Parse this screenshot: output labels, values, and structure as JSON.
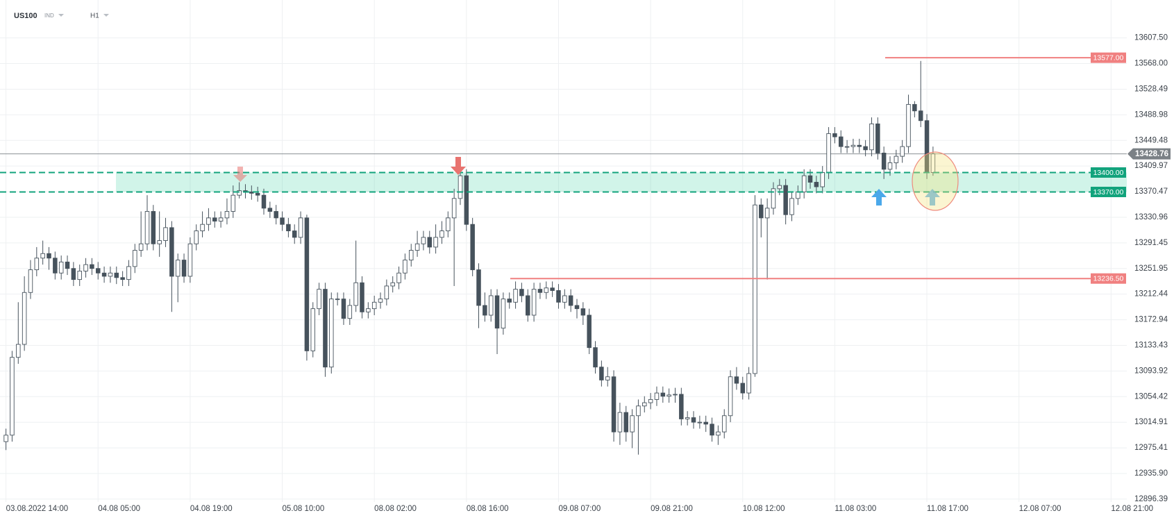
{
  "chart_data": {
    "type": "candlestick",
    "symbol": "US100",
    "market": "IND",
    "timeframe": "H1",
    "up_color": "#ffffff",
    "down_color": "#46525c",
    "wick_color": "#46525c",
    "grid": true,
    "ylim": [
      12892,
      13666
    ],
    "yticks": [
      {
        "value": 13607.5,
        "label": "13607.50"
      },
      {
        "value": 13568,
        "label": "13568.00"
      },
      {
        "value": 13528.49,
        "label": "13528.49"
      },
      {
        "value": 13488.98,
        "label": "13488.98"
      },
      {
        "value": 13449.48,
        "label": "13449.48"
      },
      {
        "value": 13409.97,
        "label": "13409.97"
      },
      {
        "value": 13370.47,
        "label": "13370.47"
      },
      {
        "value": 13330.96,
        "label": "13330.96"
      },
      {
        "value": 13291.45,
        "label": "13291.45"
      },
      {
        "value": 13251.95,
        "label": "13251.95"
      },
      {
        "value": 13212.44,
        "label": "13212.44"
      },
      {
        "value": 13172.94,
        "label": "13172.94"
      },
      {
        "value": 13133.43,
        "label": "13133.43"
      },
      {
        "value": 13093.92,
        "label": "13093.92"
      },
      {
        "value": 13054.42,
        "label": "13054.42"
      },
      {
        "value": 13014.91,
        "label": "13014.91"
      },
      {
        "value": 12975.41,
        "label": "12975.41"
      },
      {
        "value": 12935.9,
        "label": "12935.90"
      },
      {
        "value": 12896.39,
        "label": "12896.39"
      }
    ],
    "levels": [
      {
        "value": 13577,
        "label": "13577.00",
        "color": "#f08080",
        "style": "solid"
      },
      {
        "value": 13400,
        "label": "13400.00",
        "color": "#12a37c",
        "style": "dashed"
      },
      {
        "value": 13370,
        "label": "13370.00",
        "color": "#12a37c",
        "style": "dashed"
      },
      {
        "value": 13236.5,
        "label": "13236.50",
        "color": "#f08080",
        "style": "solid"
      }
    ],
    "last_price": 13428.76,
    "categories": [
      "03.08.2022 14:00",
      null,
      null,
      null,
      null,
      null,
      null,
      null,
      null,
      null,
      null,
      null,
      null,
      null,
      null,
      "04.08 05:00",
      null,
      null,
      null,
      null,
      null,
      null,
      null,
      null,
      null,
      null,
      null,
      null,
      null,
      null,
      "04.08 19:00",
      null,
      null,
      null,
      null,
      null,
      null,
      null,
      null,
      null,
      null,
      null,
      null,
      null,
      null,
      "05.08 10:00",
      null,
      null,
      null,
      null,
      null,
      null,
      null,
      null,
      null,
      null,
      null,
      null,
      null,
      null,
      "08.08 02:00",
      null,
      null,
      null,
      null,
      null,
      null,
      null,
      null,
      null,
      null,
      null,
      null,
      null,
      null,
      "08.08 16:00",
      null,
      null,
      null,
      null,
      null,
      null,
      null,
      null,
      null,
      null,
      null,
      null,
      null,
      null,
      "09.08 07:00",
      null,
      null,
      null,
      null,
      null,
      null,
      null,
      null,
      null,
      null,
      null,
      null,
      null,
      null,
      "09.08 21:00",
      null,
      null,
      null,
      null,
      null,
      null,
      null,
      null,
      null,
      null,
      null,
      null,
      null,
      null,
      "10.08 12:00",
      null,
      null,
      null,
      null,
      null,
      null,
      null,
      null,
      null,
      null,
      null,
      null,
      null,
      null,
      "11.08 03:00",
      null,
      null,
      null,
      null,
      null,
      null,
      null,
      null,
      null,
      null,
      null,
      null,
      null,
      null,
      "11.08 17:00",
      null,
      null,
      null,
      null,
      null,
      null,
      null,
      null,
      null,
      null,
      null,
      null,
      null,
      null,
      "12.08 07:00",
      null,
      null,
      null,
      null,
      null,
      null,
      null,
      null,
      null,
      null,
      null,
      null,
      null,
      null,
      "12.08 21:00"
    ],
    "open": [
      12985,
      12995,
      13115,
      13135,
      13215,
      13250,
      13268,
      13275,
      13268,
      13245,
      13262,
      13252,
      13235,
      13248,
      13258,
      13252,
      13245,
      13240,
      13245,
      13238,
      13235,
      13255,
      13280,
      13290,
      13340,
      13290,
      13295,
      13315,
      13240,
      13265,
      13240,
      13290,
      13310,
      13320,
      13330,
      13325,
      13330,
      13340,
      13365,
      13372,
      13370,
      13368,
      13365,
      13345,
      13340,
      13330,
      13320,
      13310,
      13300,
      13330,
      13125,
      13190,
      13220,
      13100,
      13205,
      13205,
      13175,
      13195,
      13230,
      13185,
      13190,
      13200,
      13205,
      13225,
      13230,
      13245,
      13265,
      13280,
      13290,
      13300,
      13285,
      13300,
      13310,
      13330,
      13360,
      13395,
      13320,
      13250,
      13195,
      13180,
      13210,
      13160,
      13205,
      13200,
      13220,
      13210,
      13180,
      13220,
      13215,
      13222,
      13218,
      13200,
      13210,
      13195,
      13190,
      13180,
      13130,
      13100,
      13080,
      13085,
      13000,
      13030,
      13000,
      13025,
      13040,
      13045,
      13050,
      13060,
      13055,
      13057,
      13058,
      13020,
      13022,
      13015,
      13015,
      13012,
      12995,
      13000,
      13025,
      13085,
      13075,
      13060,
      13090,
      13350,
      13330,
      13345,
      13375,
      13380,
      13335,
      13360,
      13370,
      13395,
      13385,
      13378,
      13400,
      13460,
      13455,
      13440,
      13440,
      13442,
      13440,
      13435,
      13475,
      13430,
      13405,
      13415,
      13425,
      13440,
      13505,
      13495,
      13480,
      13400,
      null,
      null,
      null,
      null,
      null,
      null,
      null,
      null,
      null,
      null,
      null,
      null,
      null,
      null,
      null,
      null,
      null,
      null,
      null,
      null,
      null,
      null,
      null,
      null,
      null,
      null,
      null,
      null,
      null
    ],
    "high": [
      13005,
      13125,
      13200,
      13240,
      13265,
      13285,
      13295,
      13285,
      13278,
      13272,
      13272,
      13262,
      13258,
      13268,
      13268,
      13262,
      13255,
      13255,
      13255,
      13248,
      13265,
      13290,
      13340,
      13365,
      13350,
      13340,
      13330,
      13325,
      13275,
      13275,
      13300,
      13320,
      13340,
      13345,
      13340,
      13340,
      13360,
      13380,
      13385,
      13382,
      13380,
      13378,
      13375,
      13355,
      13350,
      13340,
      13330,
      13320,
      13340,
      13335,
      13200,
      13230,
      13230,
      13215,
      13215,
      13215,
      13205,
      13295,
      13240,
      13200,
      13210,
      13215,
      13235,
      13240,
      13255,
      13275,
      13290,
      13310,
      13310,
      13310,
      13320,
      13325,
      13340,
      13375,
      13410,
      13405,
      13330,
      13260,
      13215,
      13220,
      13220,
      13215,
      13215,
      13232,
      13230,
      13220,
      13230,
      13230,
      13232,
      13232,
      13228,
      13220,
      13220,
      13205,
      13200,
      13190,
      13140,
      13110,
      13100,
      13095,
      13045,
      13040,
      13035,
      13050,
      13055,
      13060,
      13070,
      13070,
      13067,
      13068,
      13068,
      13032,
      13032,
      13025,
      13025,
      13022,
      13010,
      13035,
      13095,
      13100,
      13085,
      13100,
      13365,
      13360,
      13360,
      13385,
      13390,
      13390,
      13370,
      13380,
      13405,
      13405,
      13395,
      13410,
      13470,
      13470,
      13465,
      13450,
      13452,
      13452,
      13450,
      13485,
      13485,
      13440,
      13425,
      13435,
      13450,
      13520,
      13510,
      13572,
      13490,
      13440,
      null,
      null,
      null,
      null,
      null,
      null,
      null,
      null,
      null,
      null,
      null,
      null,
      null,
      null,
      null,
      null,
      null,
      null,
      null,
      null,
      null,
      null,
      null,
      null,
      null,
      null,
      null,
      null,
      null
    ],
    "low": [
      12972,
      12985,
      13105,
      13125,
      13205,
      13240,
      13258,
      13250,
      13235,
      13235,
      13242,
      13225,
      13225,
      13238,
      13242,
      13235,
      13230,
      13230,
      13228,
      13225,
      13225,
      13245,
      13270,
      13280,
      13280,
      13270,
      13285,
      13185,
      13200,
      13230,
      13230,
      13280,
      13300,
      13310,
      13315,
      13315,
      13320,
      13330,
      13360,
      13360,
      13358,
      13355,
      13335,
      13330,
      13320,
      13310,
      13300,
      13290,
      13290,
      13110,
      13115,
      13180,
      13085,
      13090,
      13195,
      13165,
      13165,
      13185,
      13175,
      13175,
      13180,
      13190,
      13195,
      13215,
      13220,
      13235,
      13255,
      13270,
      13280,
      13275,
      13275,
      13290,
      13300,
      13225,
      13350,
      13310,
      13240,
      13160,
      13170,
      13170,
      13120,
      13150,
      13190,
      13190,
      13200,
      13170,
      13170,
      13205,
      13205,
      13208,
      13190,
      13190,
      13185,
      13175,
      13165,
      13120,
      13090,
      13070,
      13070,
      12985,
      12980,
      12985,
      12975,
      12965,
      13030,
      13035,
      13040,
      13045,
      13045,
      13045,
      13010,
      13010,
      13005,
      13005,
      13000,
      12985,
      12980,
      12990,
      13015,
      13065,
      13050,
      13050,
      13085,
      13300,
      13235,
      13335,
      13365,
      13320,
      13325,
      13350,
      13360,
      13375,
      13368,
      13368,
      13390,
      13445,
      13430,
      13430,
      13430,
      13430,
      13425,
      13425,
      13420,
      13390,
      13395,
      13405,
      13415,
      13430,
      13485,
      13470,
      13390,
      13395,
      null,
      null,
      null,
      null,
      null,
      null,
      null,
      null,
      null,
      null,
      null,
      null,
      null,
      null,
      null,
      null,
      null,
      null,
      null,
      null,
      null,
      null,
      null,
      null,
      null,
      null,
      null,
      null,
      null
    ],
    "close": [
      12995,
      13115,
      13135,
      13215,
      13250,
      13268,
      13275,
      13268,
      13245,
      13262,
      13252,
      13235,
      13248,
      13258,
      13252,
      13245,
      13240,
      13245,
      13238,
      13235,
      13255,
      13280,
      13290,
      13340,
      13290,
      13295,
      13315,
      13240,
      13265,
      13240,
      13290,
      13310,
      13320,
      13330,
      13325,
      13330,
      13340,
      13365,
      13372,
      13370,
      13368,
      13365,
      13345,
      13340,
      13330,
      13320,
      13310,
      13300,
      13330,
      13125,
      13190,
      13220,
      13100,
      13205,
      13205,
      13175,
      13195,
      13230,
      13185,
      13190,
      13200,
      13205,
      13225,
      13230,
      13245,
      13265,
      13280,
      13290,
      13300,
      13285,
      13300,
      13310,
      13330,
      13360,
      13395,
      13320,
      13250,
      13195,
      13180,
      13210,
      13160,
      13205,
      13200,
      13220,
      13210,
      13180,
      13220,
      13215,
      13222,
      13218,
      13200,
      13210,
      13195,
      13190,
      13180,
      13130,
      13100,
      13080,
      13085,
      13000,
      13030,
      13000,
      13025,
      13040,
      13045,
      13050,
      13060,
      13055,
      13057,
      13058,
      13020,
      13022,
      13015,
      13015,
      13012,
      12995,
      13000,
      13025,
      13085,
      13075,
      13060,
      13090,
      13350,
      13330,
      13345,
      13375,
      13380,
      13335,
      13360,
      13370,
      13395,
      13385,
      13378,
      13400,
      13460,
      13455,
      13440,
      13440,
      13442,
      13440,
      13435,
      13475,
      13430,
      13405,
      13415,
      13425,
      13440,
      13505,
      13495,
      13480,
      13400,
      13428.76,
      null,
      null,
      null,
      null,
      null,
      null,
      null,
      null,
      null,
      null,
      null,
      null,
      null,
      null,
      null,
      null,
      null,
      null,
      null,
      null,
      null,
      null,
      null,
      null,
      null,
      null,
      null,
      null,
      null
    ]
  }
}
